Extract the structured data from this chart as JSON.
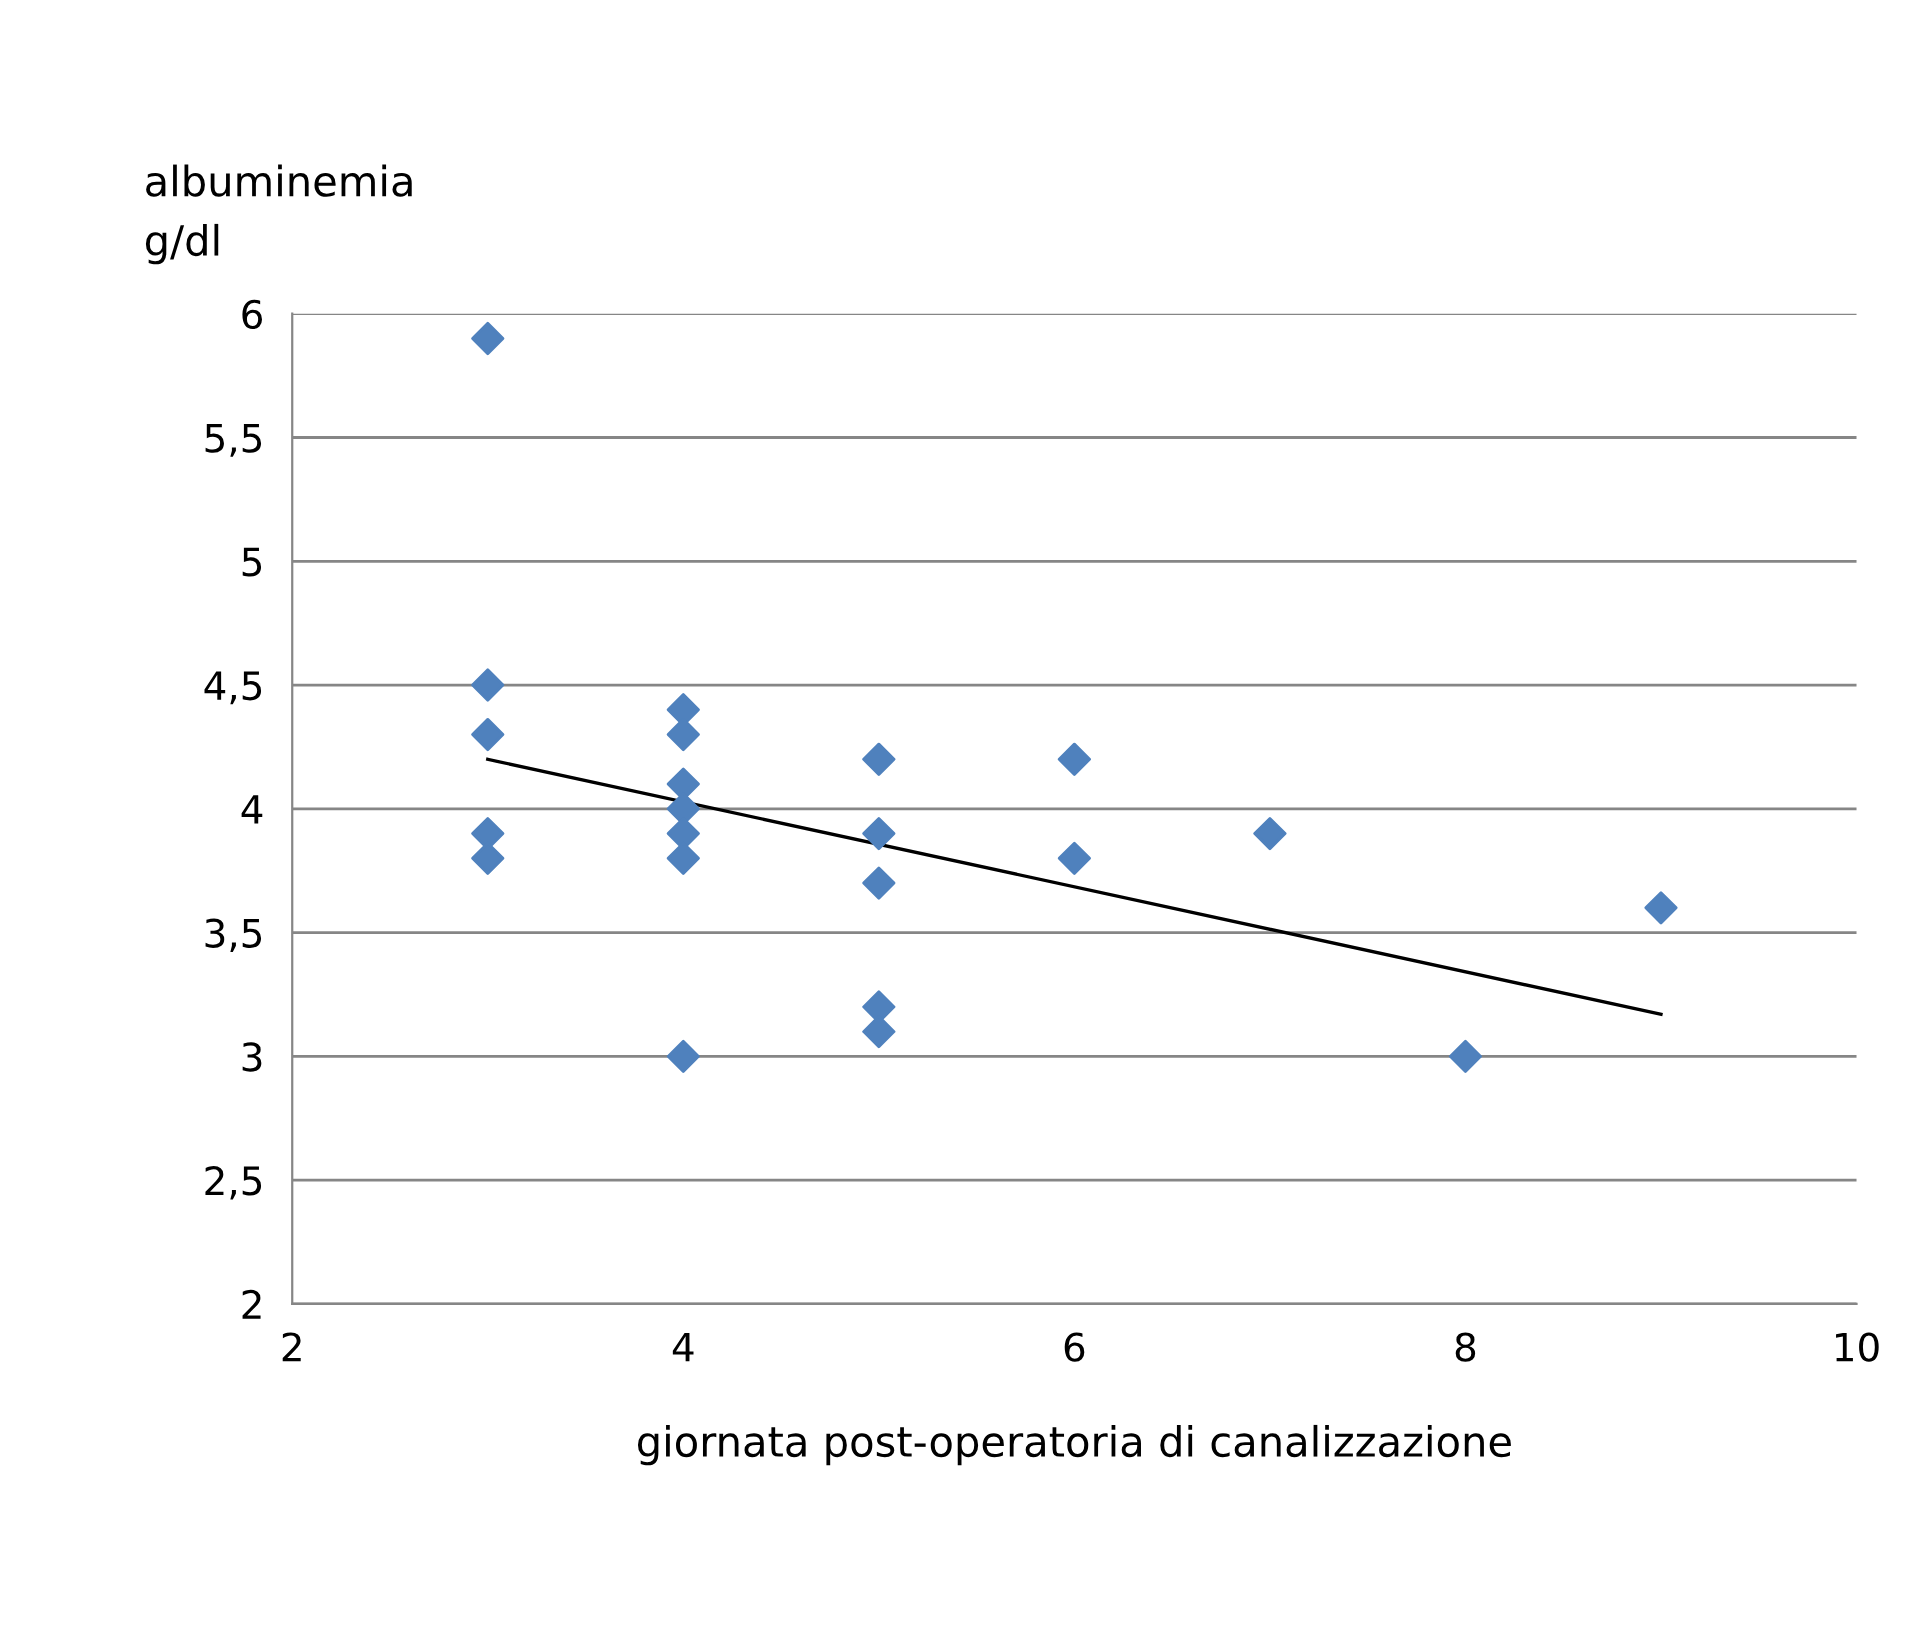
{
  "chart_data": {
    "type": "scatter",
    "ylabel": "albuminemia\ng/dl",
    "xlabel": "giornata post-operatoria di canalizzazione",
    "series": [
      {
        "color": "#4f81bd",
        "marker": "diamond",
        "x": [
          3,
          3,
          3,
          3,
          3,
          4,
          4,
          4,
          4,
          4,
          4,
          4,
          5,
          5,
          5,
          5,
          5,
          6,
          6,
          7,
          8,
          9
        ],
        "values": [
          5.9,
          4.5,
          4.3,
          3.9,
          3.8,
          4.4,
          4.3,
          4.1,
          4.0,
          3.9,
          3.8,
          3.0,
          4.2,
          3.9,
          3.7,
          3.2,
          3.1,
          4.2,
          3.8,
          3.9,
          3.0,
          3.6
        ]
      },
      {
        "type": "line",
        "color": "#000000",
        "marker": "none",
        "x": [
          3,
          9
        ],
        "values": [
          4.2,
          3.17
        ]
      }
    ],
    "xlim": [
      2,
      10
    ],
    "xticks": [
      2,
      4,
      6,
      8,
      10
    ],
    "ylim": [
      2,
      6
    ],
    "yticks": [
      {
        "value": 2,
        "label": "2"
      },
      {
        "value": 2.5,
        "label": "2,5"
      },
      {
        "value": 3,
        "label": "3"
      },
      {
        "value": 3.5,
        "label": "3,5"
      },
      {
        "value": 4,
        "label": "4"
      },
      {
        "value": 4.5,
        "label": "4,5"
      },
      {
        "value": 5,
        "label": "5"
      },
      {
        "value": 5.5,
        "label": "5,5"
      },
      {
        "value": 6,
        "label": "6"
      }
    ],
    "grid": "y",
    "legend": false
  }
}
